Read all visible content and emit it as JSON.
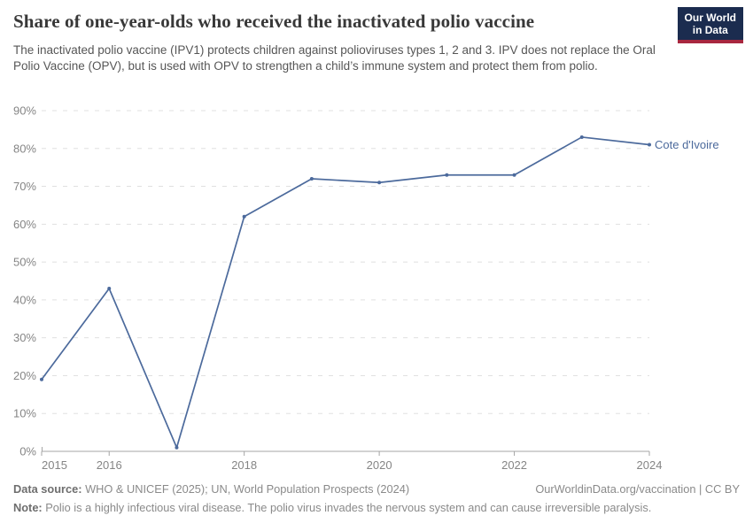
{
  "header": {
    "title": "Share of one-year-olds who received the inactivated polio vaccine",
    "subtitle": "The inactivated polio vaccine (IPV1) protects children against polioviruses types 1, 2 and 3. IPV does not replace the Oral Polio Vaccine (OPV), but is used with OPV to strengthen a child’s immune system and protect them from polio.",
    "logo": {
      "line1": "Our World",
      "line2": "in Data",
      "bg_color": "#1b2c4f",
      "accent_color": "#a8273f"
    }
  },
  "chart_data": {
    "type": "line",
    "title": "Share of one-year-olds who received the inactivated polio vaccine",
    "x": [
      2015,
      2016,
      2017,
      2018,
      2019,
      2020,
      2021,
      2022,
      2023,
      2024
    ],
    "series": [
      {
        "name": "Cote d'Ivoire",
        "color": "#4c6a9c",
        "values": [
          19,
          43,
          1,
          62,
          72,
          71,
          73,
          73,
          83,
          81
        ]
      }
    ],
    "xlim": [
      2015,
      2024
    ],
    "ylim": [
      0,
      90
    ],
    "x_ticks": [
      2015,
      2016,
      2018,
      2020,
      2022,
      2024
    ],
    "x_tick_labels": [
      "2015",
      "2016",
      "2018",
      "2020",
      "2022",
      "2024"
    ],
    "y_ticks": [
      0,
      10,
      20,
      30,
      40,
      50,
      60,
      70,
      80,
      90
    ],
    "y_tick_suffix": "%",
    "grid": "horizontal-dashed",
    "legend_position": "end-of-line-label"
  },
  "colors": {
    "line": "#4c6a9c",
    "axis_text": "#858585",
    "grid": "#e0e0e0",
    "axis_line": "#a5a5a5"
  },
  "footer": {
    "source_label": "Data source:",
    "source_text": " WHO & UNICEF (2025); UN, World Population Prospects (2024)",
    "rights_text": "OurWorldinData.org/vaccination | CC BY",
    "note_label": "Note:",
    "note_text": " Polio is a highly infectious viral disease. The polio virus invades the nervous system and can cause irreversible paralysis."
  }
}
